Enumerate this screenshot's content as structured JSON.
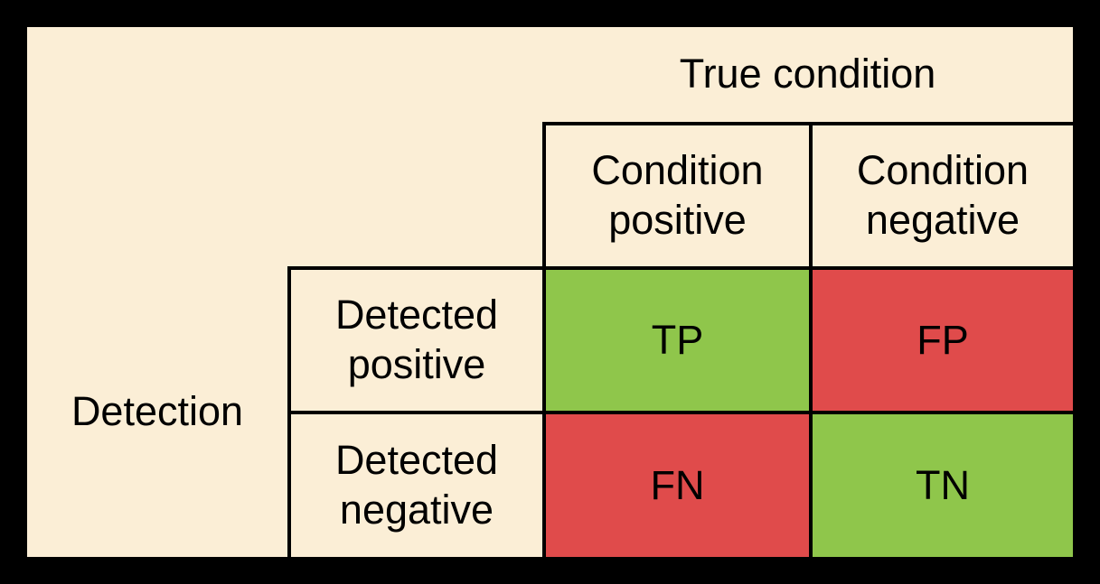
{
  "table": {
    "top_header": "True condition",
    "left_header": "Detection",
    "column_headers": [
      {
        "label": "Condition positive"
      },
      {
        "label": "Condition negative"
      }
    ],
    "row_headers": [
      {
        "label": "Detected positive"
      },
      {
        "label": "Detected negative"
      }
    ],
    "cells": [
      {
        "row": 0,
        "col": 0,
        "label": "TP",
        "type": "true-positive",
        "color": "#8FC64B"
      },
      {
        "row": 0,
        "col": 1,
        "label": "FP",
        "type": "false-positive",
        "color": "#E04B4B"
      },
      {
        "row": 1,
        "col": 0,
        "label": "FN",
        "type": "false-negative",
        "color": "#E04B4B"
      },
      {
        "row": 1,
        "col": 1,
        "label": "TN",
        "type": "true-negative",
        "color": "#8FC64B"
      }
    ],
    "colors": {
      "background": "#FBEED6",
      "positive_green": "#8FC64B",
      "negative_red": "#E04B4B",
      "border": "#000000",
      "text": "#000000",
      "outer_background": "#000000"
    }
  }
}
